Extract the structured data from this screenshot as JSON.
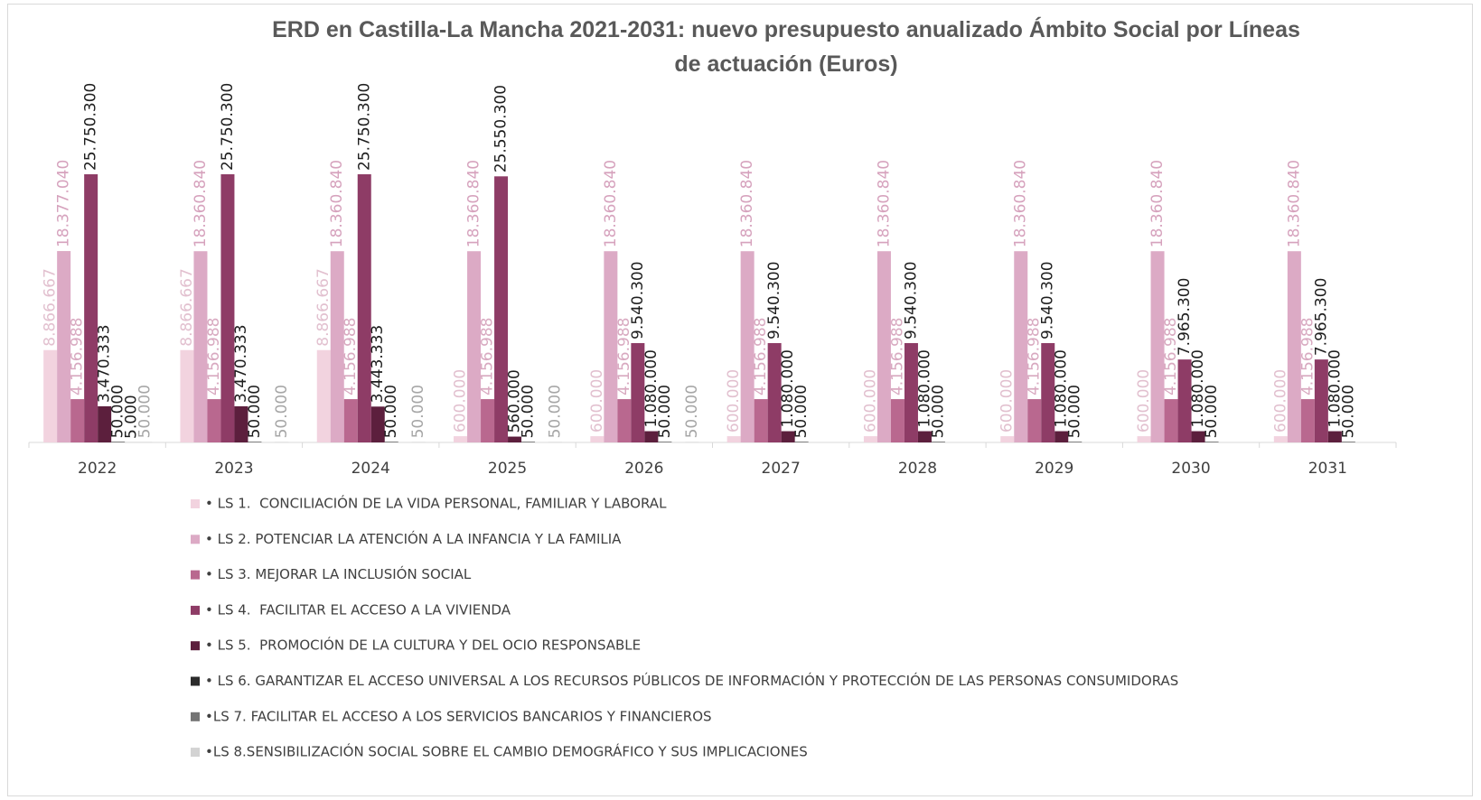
{
  "chart_data": {
    "type": "bar",
    "title": "ERD en Castilla-La Mancha 2021-2031: nuevo presupuesto anualizado Ámbito Social por Líneas de actuación (Euros)",
    "categories": [
      "2022",
      "2023",
      "2024",
      "2025",
      "2026",
      "2027",
      "2028",
      "2029",
      "2030",
      "2031"
    ],
    "series": [
      {
        "name": "• LS 1.  CONCILIACIÓN DE LA VIDA PERSONAL, FAMILIAR Y LABORAL",
        "color": "#f2d3df",
        "label_color": "#e2c0cf",
        "values": [
          8866667,
          8866667,
          8866667,
          600000,
          600000,
          600000,
          600000,
          600000,
          600000,
          600000
        ],
        "value_labels": [
          "8.866.667",
          "8.866.667",
          "8.866.667",
          "600.000",
          "600.000",
          "600.000",
          "600.000",
          "600.000",
          "600.000",
          "600.000"
        ]
      },
      {
        "name": "• LS 2. POTENCIAR LA ATENCIÓN A LA INFANCIA Y LA FAMILIA",
        "color": "#dcaac5",
        "label_color": "#d6a2bd",
        "values": [
          18377040,
          18360840,
          18360840,
          18360840,
          18360840,
          18360840,
          18360840,
          18360840,
          18360840,
          18360840
        ],
        "value_labels": [
          "18.377.040",
          "18.360.840",
          "18.360.840",
          "18.360.840",
          "18.360.840",
          "18.360.840",
          "18.360.840",
          "18.360.840",
          "18.360.840",
          "18.360.840"
        ]
      },
      {
        "name": "• LS 3. MEJORAR LA INCLUSIÓN SOCIAL",
        "color": "#b9688f",
        "label_color": "#d8a9c0",
        "values": [
          4156988,
          4156988,
          4156988,
          4156988,
          4156988,
          4156988,
          4156988,
          4156988,
          4156988,
          4156988
        ],
        "value_labels": [
          "4.156.988",
          "4.156.988",
          "4.156.988",
          "4.156.988",
          "4.156.988",
          "4.156.988",
          "4.156.988",
          "4.156.988",
          "4.156.988",
          "4.156.988"
        ]
      },
      {
        "name": "• LS 4.  FACILITAR EL ACCESO A LA VIVIENDA",
        "color": "#8e3c66",
        "label_color": "#1e1e1e",
        "values": [
          25750300,
          25750300,
          25750300,
          25550300,
          9540300,
          9540300,
          9540300,
          9540300,
          7965300,
          7965300
        ],
        "value_labels": [
          "25.750.300",
          "25.750.300",
          "25.750.300",
          "25.550.300",
          "9.540.300",
          "9.540.300",
          "9.540.300",
          "9.540.300",
          "7.965.300",
          "7.965.300"
        ]
      },
      {
        "name": "• LS 5.  PROMOCIÓN DE LA CULTURA Y DEL OCIO RESPONSABLE",
        "color": "#5c1f3d",
        "label_color": "#1e1e1e",
        "values": [
          3470333,
          3470333,
          3443333,
          560000,
          1080000,
          1080000,
          1080000,
          1080000,
          1080000,
          1080000
        ],
        "value_labels": [
          "3.470.333",
          "3.470.333",
          "3.443.333",
          "560.000",
          "1.080.000",
          "1.080.000",
          "1.080.000",
          "1.080.000",
          "1.080.000",
          "1.080.000"
        ]
      },
      {
        "name": "• LS 6. GARANTIZAR EL ACCESO UNIVERSAL A LOS RECURSOS PÚBLICOS DE INFORMACIÓN Y PROTECCIÓN DE LAS PERSONAS CONSUMIDORAS",
        "color": "#2b2b2b",
        "label_color": "#1e1e1e",
        "values": [
          50000,
          50000,
          50000,
          50000,
          50000,
          50000,
          50000,
          50000,
          50000,
          50000
        ],
        "value_labels": [
          "50.000",
          "50.000",
          "50.000",
          "50.000",
          "50.000",
          "50.000",
          "50.000",
          "50.000",
          "50.000",
          "50.000"
        ]
      },
      {
        "name": "•LS 7. FACILITAR EL ACCESO A LOS SERVICIOS BANCARIOS Y FINANCIEROS",
        "color": "#747474",
        "label_color": "#1e1e1e",
        "values": [
          5000,
          null,
          null,
          null,
          null,
          null,
          null,
          null,
          null,
          null
        ],
        "value_labels": [
          "5.000",
          null,
          null,
          null,
          null,
          null,
          null,
          null,
          null,
          null
        ]
      },
      {
        "name": "•LS 8.SENSIBILIZACIÓN SOCIAL SOBRE EL CAMBIO DEMOGRÁFICO Y SUS IMPLICACIONES",
        "color": "#d3d3d3",
        "label_color": "#a6a6a6",
        "values": [
          50000,
          50000,
          50000,
          50000,
          50000,
          null,
          null,
          null,
          null,
          null
        ],
        "value_labels": [
          "50.000",
          "50.000",
          "50.000",
          "50.000",
          "50.000",
          null,
          null,
          null,
          null,
          null
        ]
      }
    ]
  }
}
